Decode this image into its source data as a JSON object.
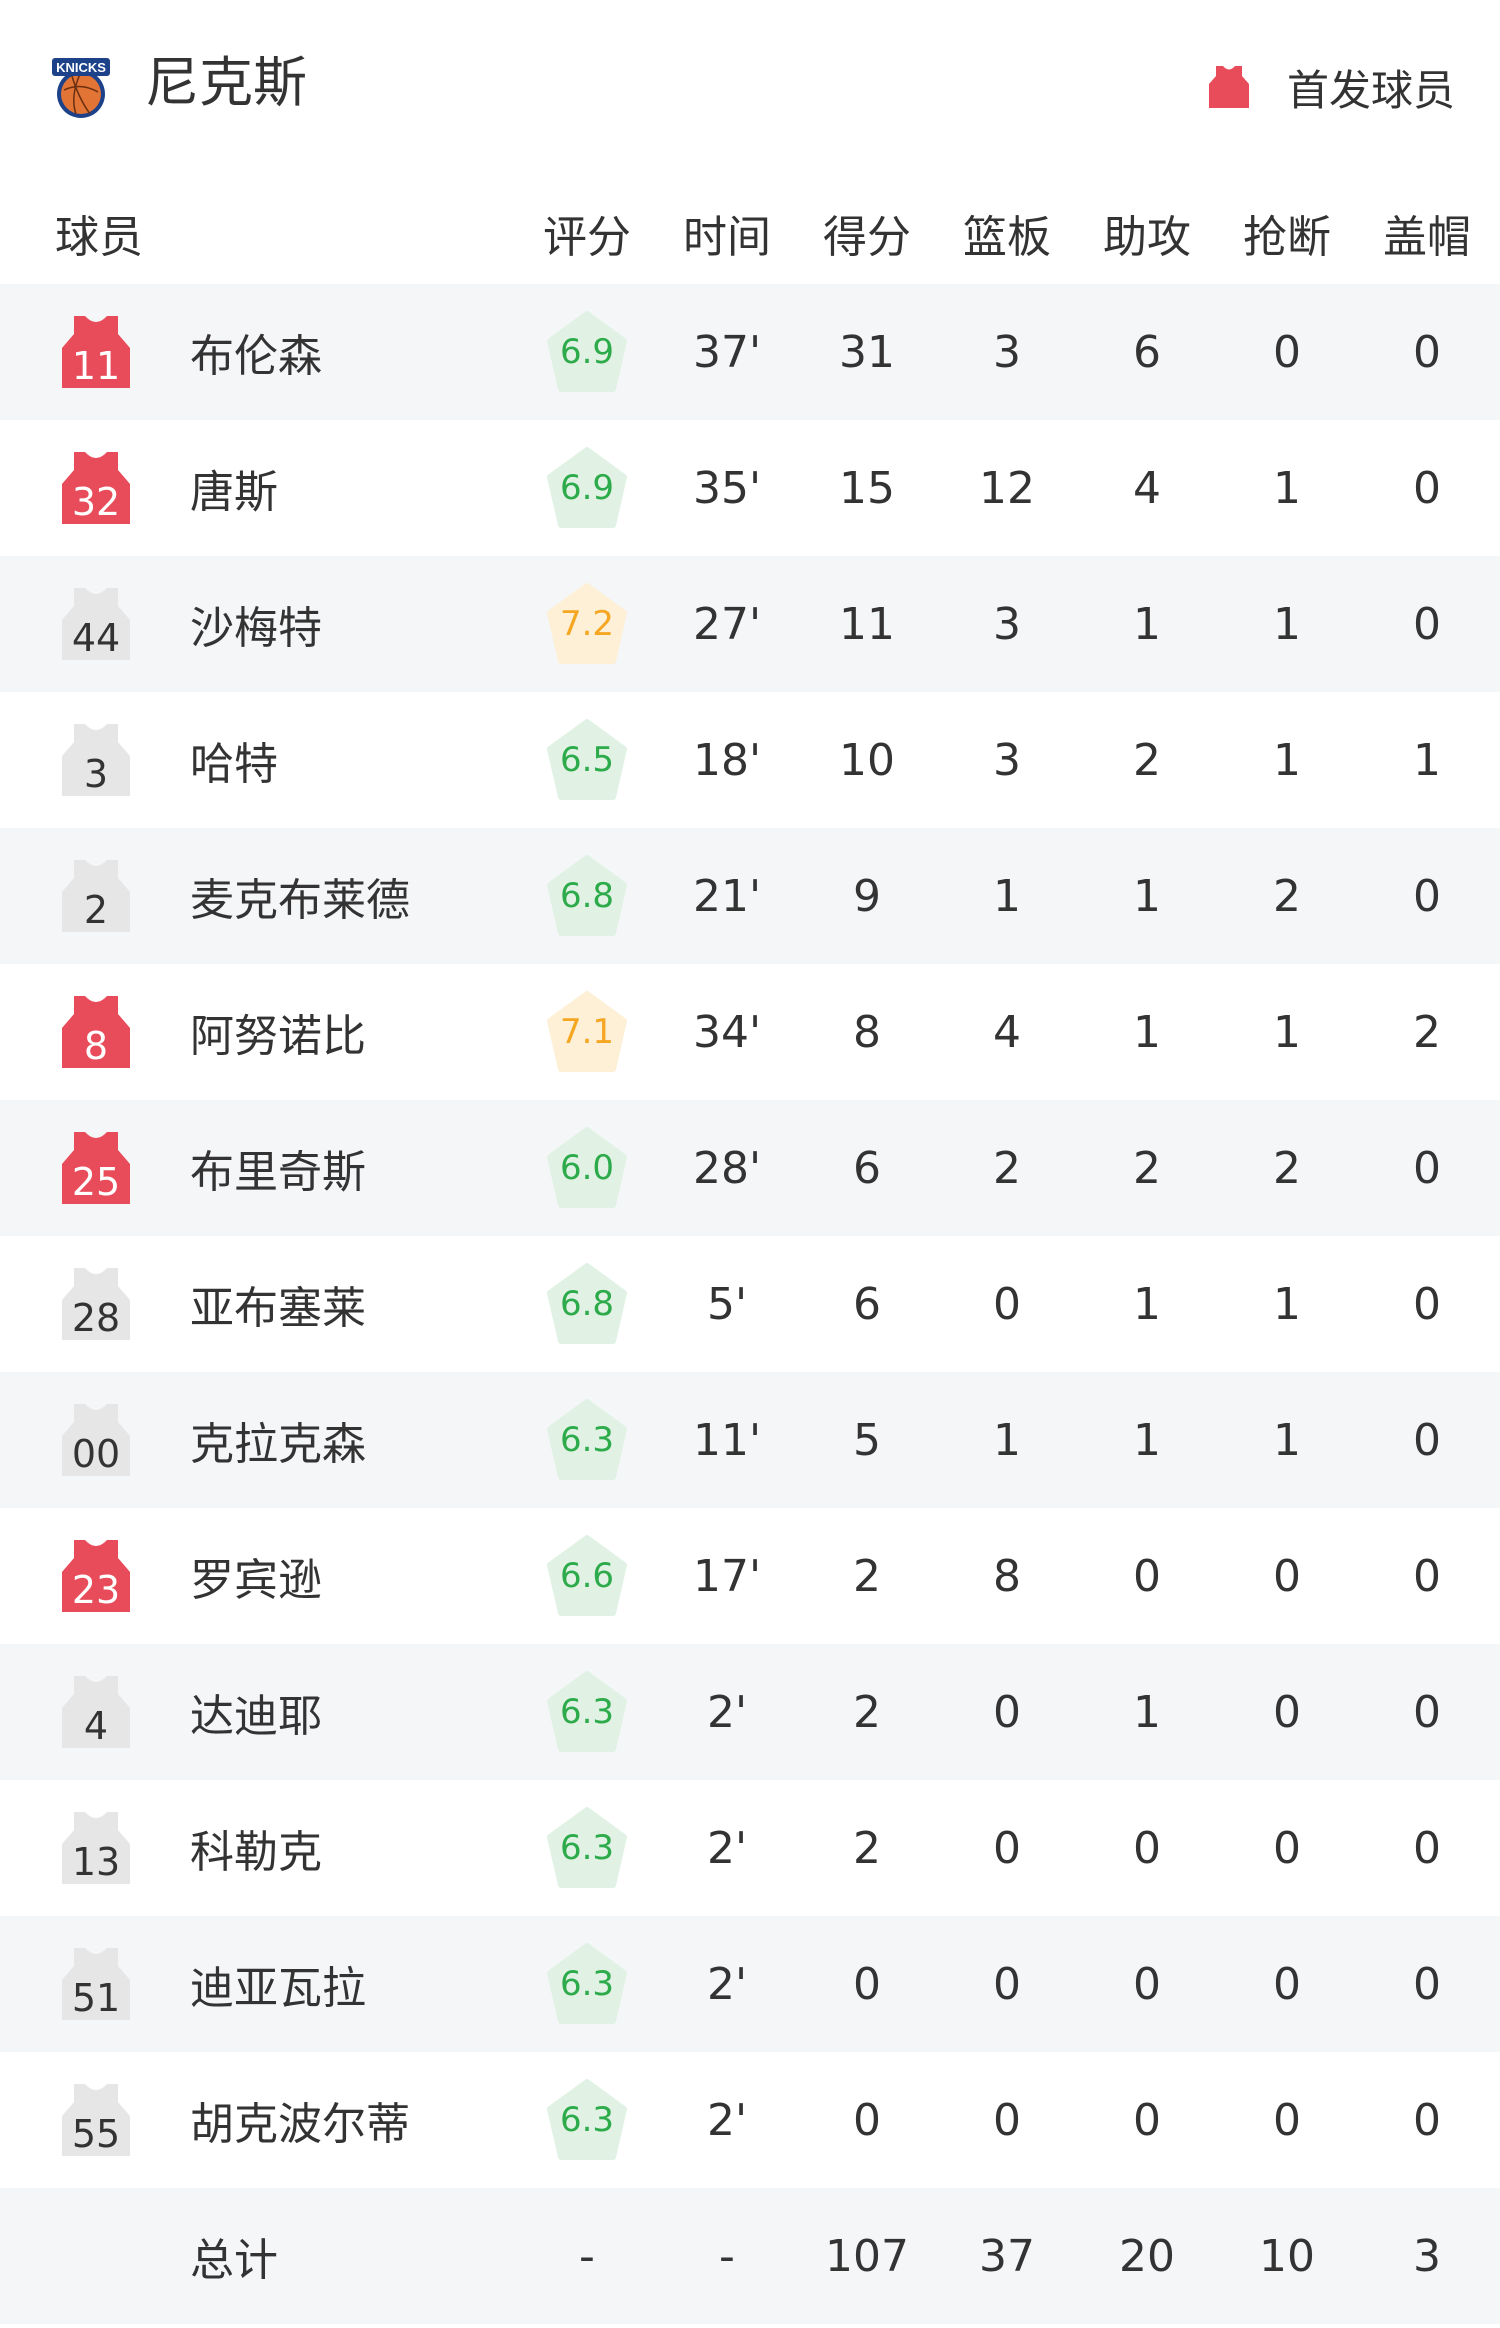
{
  "header": {
    "team": "尼克斯",
    "logo_text": "KNICKS",
    "legend_label": "首发球员"
  },
  "colors": {
    "starter": "#e84c5a",
    "bench": "#e6e6e6",
    "rating_green_bg": "#e1f2e5",
    "rating_green_text": "#2daa4a",
    "rating_orange_bg": "#fdf0d6",
    "rating_orange_text": "#f5a623",
    "row_alt": "#f5f6f8"
  },
  "columns": [
    "球员",
    "评分",
    "时间",
    "得分",
    "篮板",
    "助攻",
    "抢断",
    "盖帽"
  ],
  "players": [
    {
      "number": "11",
      "name": "布伦森",
      "starter": true,
      "rating": "6.9",
      "tier": "green",
      "min": "37'",
      "pts": "31",
      "reb": "3",
      "ast": "6",
      "stl": "0",
      "blk": "0"
    },
    {
      "number": "32",
      "name": "唐斯",
      "starter": true,
      "rating": "6.9",
      "tier": "green",
      "min": "35'",
      "pts": "15",
      "reb": "12",
      "ast": "4",
      "stl": "1",
      "blk": "0"
    },
    {
      "number": "44",
      "name": "沙梅特",
      "starter": false,
      "rating": "7.2",
      "tier": "orange",
      "min": "27'",
      "pts": "11",
      "reb": "3",
      "ast": "1",
      "stl": "1",
      "blk": "0"
    },
    {
      "number": "3",
      "name": "哈特",
      "starter": false,
      "rating": "6.5",
      "tier": "green",
      "min": "18'",
      "pts": "10",
      "reb": "3",
      "ast": "2",
      "stl": "1",
      "blk": "1"
    },
    {
      "number": "2",
      "name": "麦克布莱德",
      "starter": false,
      "rating": "6.8",
      "tier": "green",
      "min": "21'",
      "pts": "9",
      "reb": "1",
      "ast": "1",
      "stl": "2",
      "blk": "0"
    },
    {
      "number": "8",
      "name": "阿努诺比",
      "starter": true,
      "rating": "7.1",
      "tier": "orange",
      "min": "34'",
      "pts": "8",
      "reb": "4",
      "ast": "1",
      "stl": "1",
      "blk": "2"
    },
    {
      "number": "25",
      "name": "布里奇斯",
      "starter": true,
      "rating": "6.0",
      "tier": "green",
      "min": "28'",
      "pts": "6",
      "reb": "2",
      "ast": "2",
      "stl": "2",
      "blk": "0"
    },
    {
      "number": "28",
      "name": "亚布塞莱",
      "starter": false,
      "rating": "6.8",
      "tier": "green",
      "min": "5'",
      "pts": "6",
      "reb": "0",
      "ast": "1",
      "stl": "1",
      "blk": "0"
    },
    {
      "number": "00",
      "name": "克拉克森",
      "starter": false,
      "rating": "6.3",
      "tier": "green",
      "min": "11'",
      "pts": "5",
      "reb": "1",
      "ast": "1",
      "stl": "1",
      "blk": "0"
    },
    {
      "number": "23",
      "name": "罗宾逊",
      "starter": true,
      "rating": "6.6",
      "tier": "green",
      "min": "17'",
      "pts": "2",
      "reb": "8",
      "ast": "0",
      "stl": "0",
      "blk": "0"
    },
    {
      "number": "4",
      "name": "达迪耶",
      "starter": false,
      "rating": "6.3",
      "tier": "green",
      "min": "2'",
      "pts": "2",
      "reb": "0",
      "ast": "1",
      "stl": "0",
      "blk": "0"
    },
    {
      "number": "13",
      "name": "科勒克",
      "starter": false,
      "rating": "6.3",
      "tier": "green",
      "min": "2'",
      "pts": "2",
      "reb": "0",
      "ast": "0",
      "stl": "0",
      "blk": "0"
    },
    {
      "number": "51",
      "name": "迪亚瓦拉",
      "starter": false,
      "rating": "6.3",
      "tier": "green",
      "min": "2'",
      "pts": "0",
      "reb": "0",
      "ast": "0",
      "stl": "0",
      "blk": "0"
    },
    {
      "number": "55",
      "name": "胡克波尔蒂",
      "starter": false,
      "rating": "6.3",
      "tier": "green",
      "min": "2'",
      "pts": "0",
      "reb": "0",
      "ast": "0",
      "stl": "0",
      "blk": "0"
    }
  ],
  "total": {
    "label": "总计",
    "rating": "-",
    "min": "-",
    "pts": "107",
    "reb": "37",
    "ast": "20",
    "stl": "10",
    "blk": "3"
  }
}
